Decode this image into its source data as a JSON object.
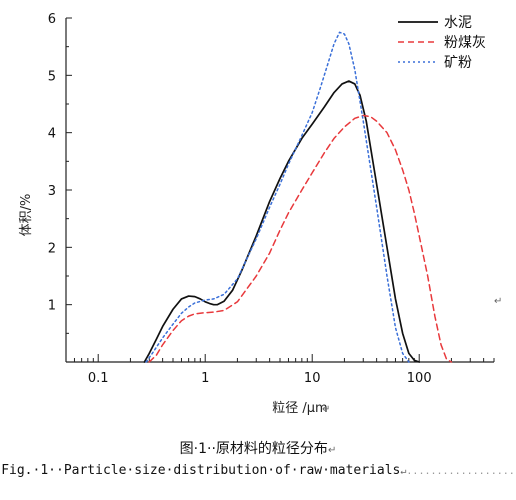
{
  "chart_data": {
    "type": "line",
    "xscale": "log",
    "xlim": [
      0.05,
      500
    ],
    "ylim": [
      0,
      6
    ],
    "x_ticks": [
      {
        "value": 0.1,
        "label": "0.1"
      },
      {
        "value": 1,
        "label": "1"
      },
      {
        "value": 10,
        "label": "10"
      },
      {
        "value": 100,
        "label": "100"
      }
    ],
    "y_ticks": [
      {
        "value": 1,
        "label": "1"
      },
      {
        "value": 2,
        "label": "2"
      },
      {
        "value": 3,
        "label": "3"
      },
      {
        "value": 4,
        "label": "4"
      },
      {
        "value": 5,
        "label": "5"
      },
      {
        "value": 6,
        "label": "6"
      }
    ],
    "xlabel": "粒径 /μm",
    "ylabel": "体积/%",
    "grid": false,
    "legend_position": "top-right",
    "series": [
      {
        "name": "水泥",
        "color": "#111111",
        "style": "solid",
        "points": [
          [
            0.27,
            0
          ],
          [
            0.3,
            0.15
          ],
          [
            0.35,
            0.4
          ],
          [
            0.4,
            0.62
          ],
          [
            0.5,
            0.92
          ],
          [
            0.6,
            1.1
          ],
          [
            0.7,
            1.15
          ],
          [
            0.8,
            1.14
          ],
          [
            0.9,
            1.1
          ],
          [
            1.0,
            1.05
          ],
          [
            1.1,
            1.02
          ],
          [
            1.2,
            1.0
          ],
          [
            1.3,
            1.0
          ],
          [
            1.5,
            1.06
          ],
          [
            1.8,
            1.25
          ],
          [
            2.2,
            1.6
          ],
          [
            3,
            2.2
          ],
          [
            4,
            2.8
          ],
          [
            5,
            3.2
          ],
          [
            6,
            3.5
          ],
          [
            8,
            3.9
          ],
          [
            10,
            4.15
          ],
          [
            13,
            4.45
          ],
          [
            16,
            4.7
          ],
          [
            19,
            4.85
          ],
          [
            22,
            4.9
          ],
          [
            25,
            4.85
          ],
          [
            28,
            4.65
          ],
          [
            32,
            4.2
          ],
          [
            40,
            3.1
          ],
          [
            50,
            2.0
          ],
          [
            60,
            1.1
          ],
          [
            70,
            0.5
          ],
          [
            80,
            0.15
          ],
          [
            90,
            0.03
          ],
          [
            100,
            0
          ]
        ]
      },
      {
        "name": "粉煤灰",
        "color": "#e8393c",
        "style": "dashed",
        "points": [
          [
            0.3,
            0
          ],
          [
            0.35,
            0.12
          ],
          [
            0.4,
            0.3
          ],
          [
            0.5,
            0.55
          ],
          [
            0.6,
            0.72
          ],
          [
            0.7,
            0.8
          ],
          [
            0.8,
            0.84
          ],
          [
            1.0,
            0.86
          ],
          [
            1.2,
            0.87
          ],
          [
            1.5,
            0.9
          ],
          [
            2,
            1.05
          ],
          [
            3,
            1.5
          ],
          [
            4,
            1.9
          ],
          [
            5,
            2.3
          ],
          [
            6,
            2.6
          ],
          [
            8,
            3.0
          ],
          [
            10,
            3.3
          ],
          [
            13,
            3.65
          ],
          [
            16,
            3.9
          ],
          [
            20,
            4.1
          ],
          [
            25,
            4.25
          ],
          [
            30,
            4.3
          ],
          [
            35,
            4.28
          ],
          [
            40,
            4.2
          ],
          [
            50,
            4.0
          ],
          [
            60,
            3.7
          ],
          [
            70,
            3.35
          ],
          [
            80,
            3.0
          ],
          [
            90,
            2.6
          ],
          [
            100,
            2.2
          ],
          [
            120,
            1.5
          ],
          [
            140,
            0.8
          ],
          [
            160,
            0.3
          ],
          [
            180,
            0.05
          ],
          [
            200,
            0
          ]
        ]
      },
      {
        "name": "矿粉",
        "color": "#3a6fd8",
        "style": "dotted",
        "points": [
          [
            0.28,
            0
          ],
          [
            0.32,
            0.15
          ],
          [
            0.4,
            0.42
          ],
          [
            0.5,
            0.66
          ],
          [
            0.6,
            0.85
          ],
          [
            0.7,
            0.96
          ],
          [
            0.8,
            1.03
          ],
          [
            1.0,
            1.08
          ],
          [
            1.2,
            1.1
          ],
          [
            1.5,
            1.18
          ],
          [
            2,
            1.45
          ],
          [
            3,
            2.15
          ],
          [
            4,
            2.7
          ],
          [
            5,
            3.1
          ],
          [
            6,
            3.45
          ],
          [
            8,
            3.95
          ],
          [
            10,
            4.35
          ],
          [
            12,
            4.8
          ],
          [
            14,
            5.2
          ],
          [
            16,
            5.55
          ],
          [
            18,
            5.75
          ],
          [
            20,
            5.72
          ],
          [
            22,
            5.55
          ],
          [
            25,
            5.1
          ],
          [
            30,
            4.2
          ],
          [
            40,
            2.7
          ],
          [
            50,
            1.5
          ],
          [
            60,
            0.6
          ],
          [
            70,
            0.15
          ],
          [
            80,
            0
          ]
        ]
      }
    ]
  },
  "caption": {
    "cn": "图·1··原材料的粒径分布",
    "en": "Fig.·1··Particle·size·distribution·of·raw·materials"
  },
  "marks": {
    "para": "↵"
  }
}
